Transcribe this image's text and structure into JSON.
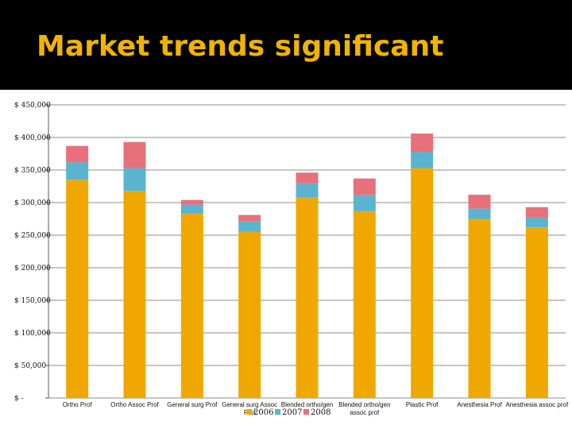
{
  "slide": {
    "title": "Market trends significant"
  },
  "chart_data": {
    "type": "bar",
    "stacked": true,
    "title": "",
    "xlabel": "",
    "ylabel": "",
    "ylim": [
      0,
      450000
    ],
    "yticks": [
      0,
      50000,
      100000,
      150000,
      200000,
      250000,
      300000,
      350000,
      400000,
      450000
    ],
    "ytick_labels": [
      "$ -",
      "$ 50,000",
      "$ 100,000",
      "$ 150,000",
      "$ 200,000",
      "$ 250,000",
      "$ 300,000",
      "$ 350,000",
      "$ 400,000",
      "$ 450,000"
    ],
    "grid": true,
    "legend_position": "bottom",
    "categories": [
      [
        "Ortho Prof"
      ],
      [
        "Ortho Assoc Prof"
      ],
      [
        "General surg Prof"
      ],
      [
        "General surg Assoc",
        "Prof"
      ],
      [
        "Blended ortho/gen"
      ],
      [
        "Blended ortho/gen",
        "assoc prof"
      ],
      [
        "Plastic Prof"
      ],
      [
        "Anesthesia Prof"
      ],
      [
        "Anesthesia assoc prof"
      ]
    ],
    "series": [
      {
        "name": "2006",
        "color": "#f0a800",
        "values": [
          335000,
          318000,
          283000,
          255000,
          308000,
          287000,
          353000,
          275000,
          262000
        ]
      },
      {
        "name": "2007",
        "color": "#5ab4cf",
        "values": [
          27000,
          35000,
          14000,
          16000,
          22000,
          25000,
          25000,
          16000,
          15000
        ]
      },
      {
        "name": "2008",
        "color": "#e8707a",
        "values": [
          25000,
          40000,
          7000,
          10000,
          16000,
          25000,
          28000,
          21000,
          16000
        ]
      }
    ]
  }
}
